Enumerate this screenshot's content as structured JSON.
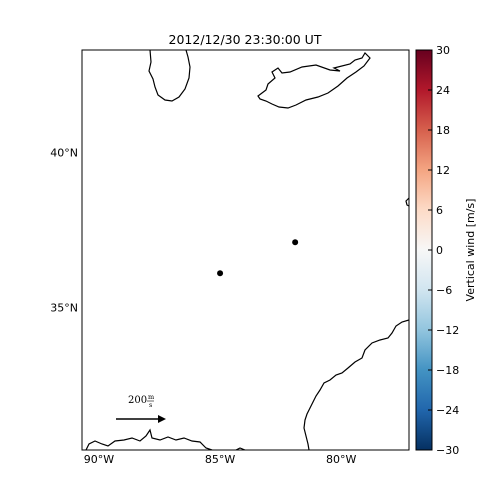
{
  "title": "2012/12/30 23:30:00 UT",
  "map": {
    "lon_range": [
      -90.7,
      -77.2
    ],
    "lat_range": [
      30.4,
      43.3
    ],
    "lat_ticks": [
      {
        "value": 40,
        "label": "40°N"
      },
      {
        "value": 35,
        "label": "35°N"
      }
    ],
    "lon_ticks": [
      {
        "value": -90,
        "label": "90°W"
      },
      {
        "value": -85,
        "label": "85°W"
      },
      {
        "value": -80,
        "label": "80°W"
      }
    ],
    "stations": [
      {
        "lon": -85.0,
        "lat": 36.1
      },
      {
        "lon": -81.9,
        "lat": 37.1
      }
    ]
  },
  "scale_arrow": {
    "value": "200",
    "unit_num": "m",
    "unit_den": "s"
  },
  "colorbar": {
    "label": "Vertical wind [m/s]",
    "min": -30,
    "max": 30,
    "colormap": "RdBu_r",
    "ticks": [
      "30",
      "24",
      "18",
      "12",
      "6",
      "0",
      "−6",
      "−12",
      "−18",
      "−24",
      "−30"
    ]
  }
}
